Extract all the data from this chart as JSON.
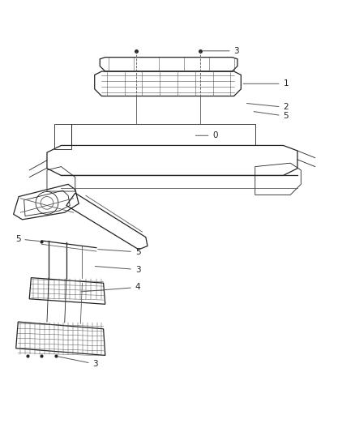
{
  "bg_color": "#ffffff",
  "line_color": "#555555",
  "dark_line": "#222222",
  "label_color": "#222222",
  "figsize": [
    4.38,
    5.33
  ],
  "dpi": 100,
  "font_size": 7.5
}
